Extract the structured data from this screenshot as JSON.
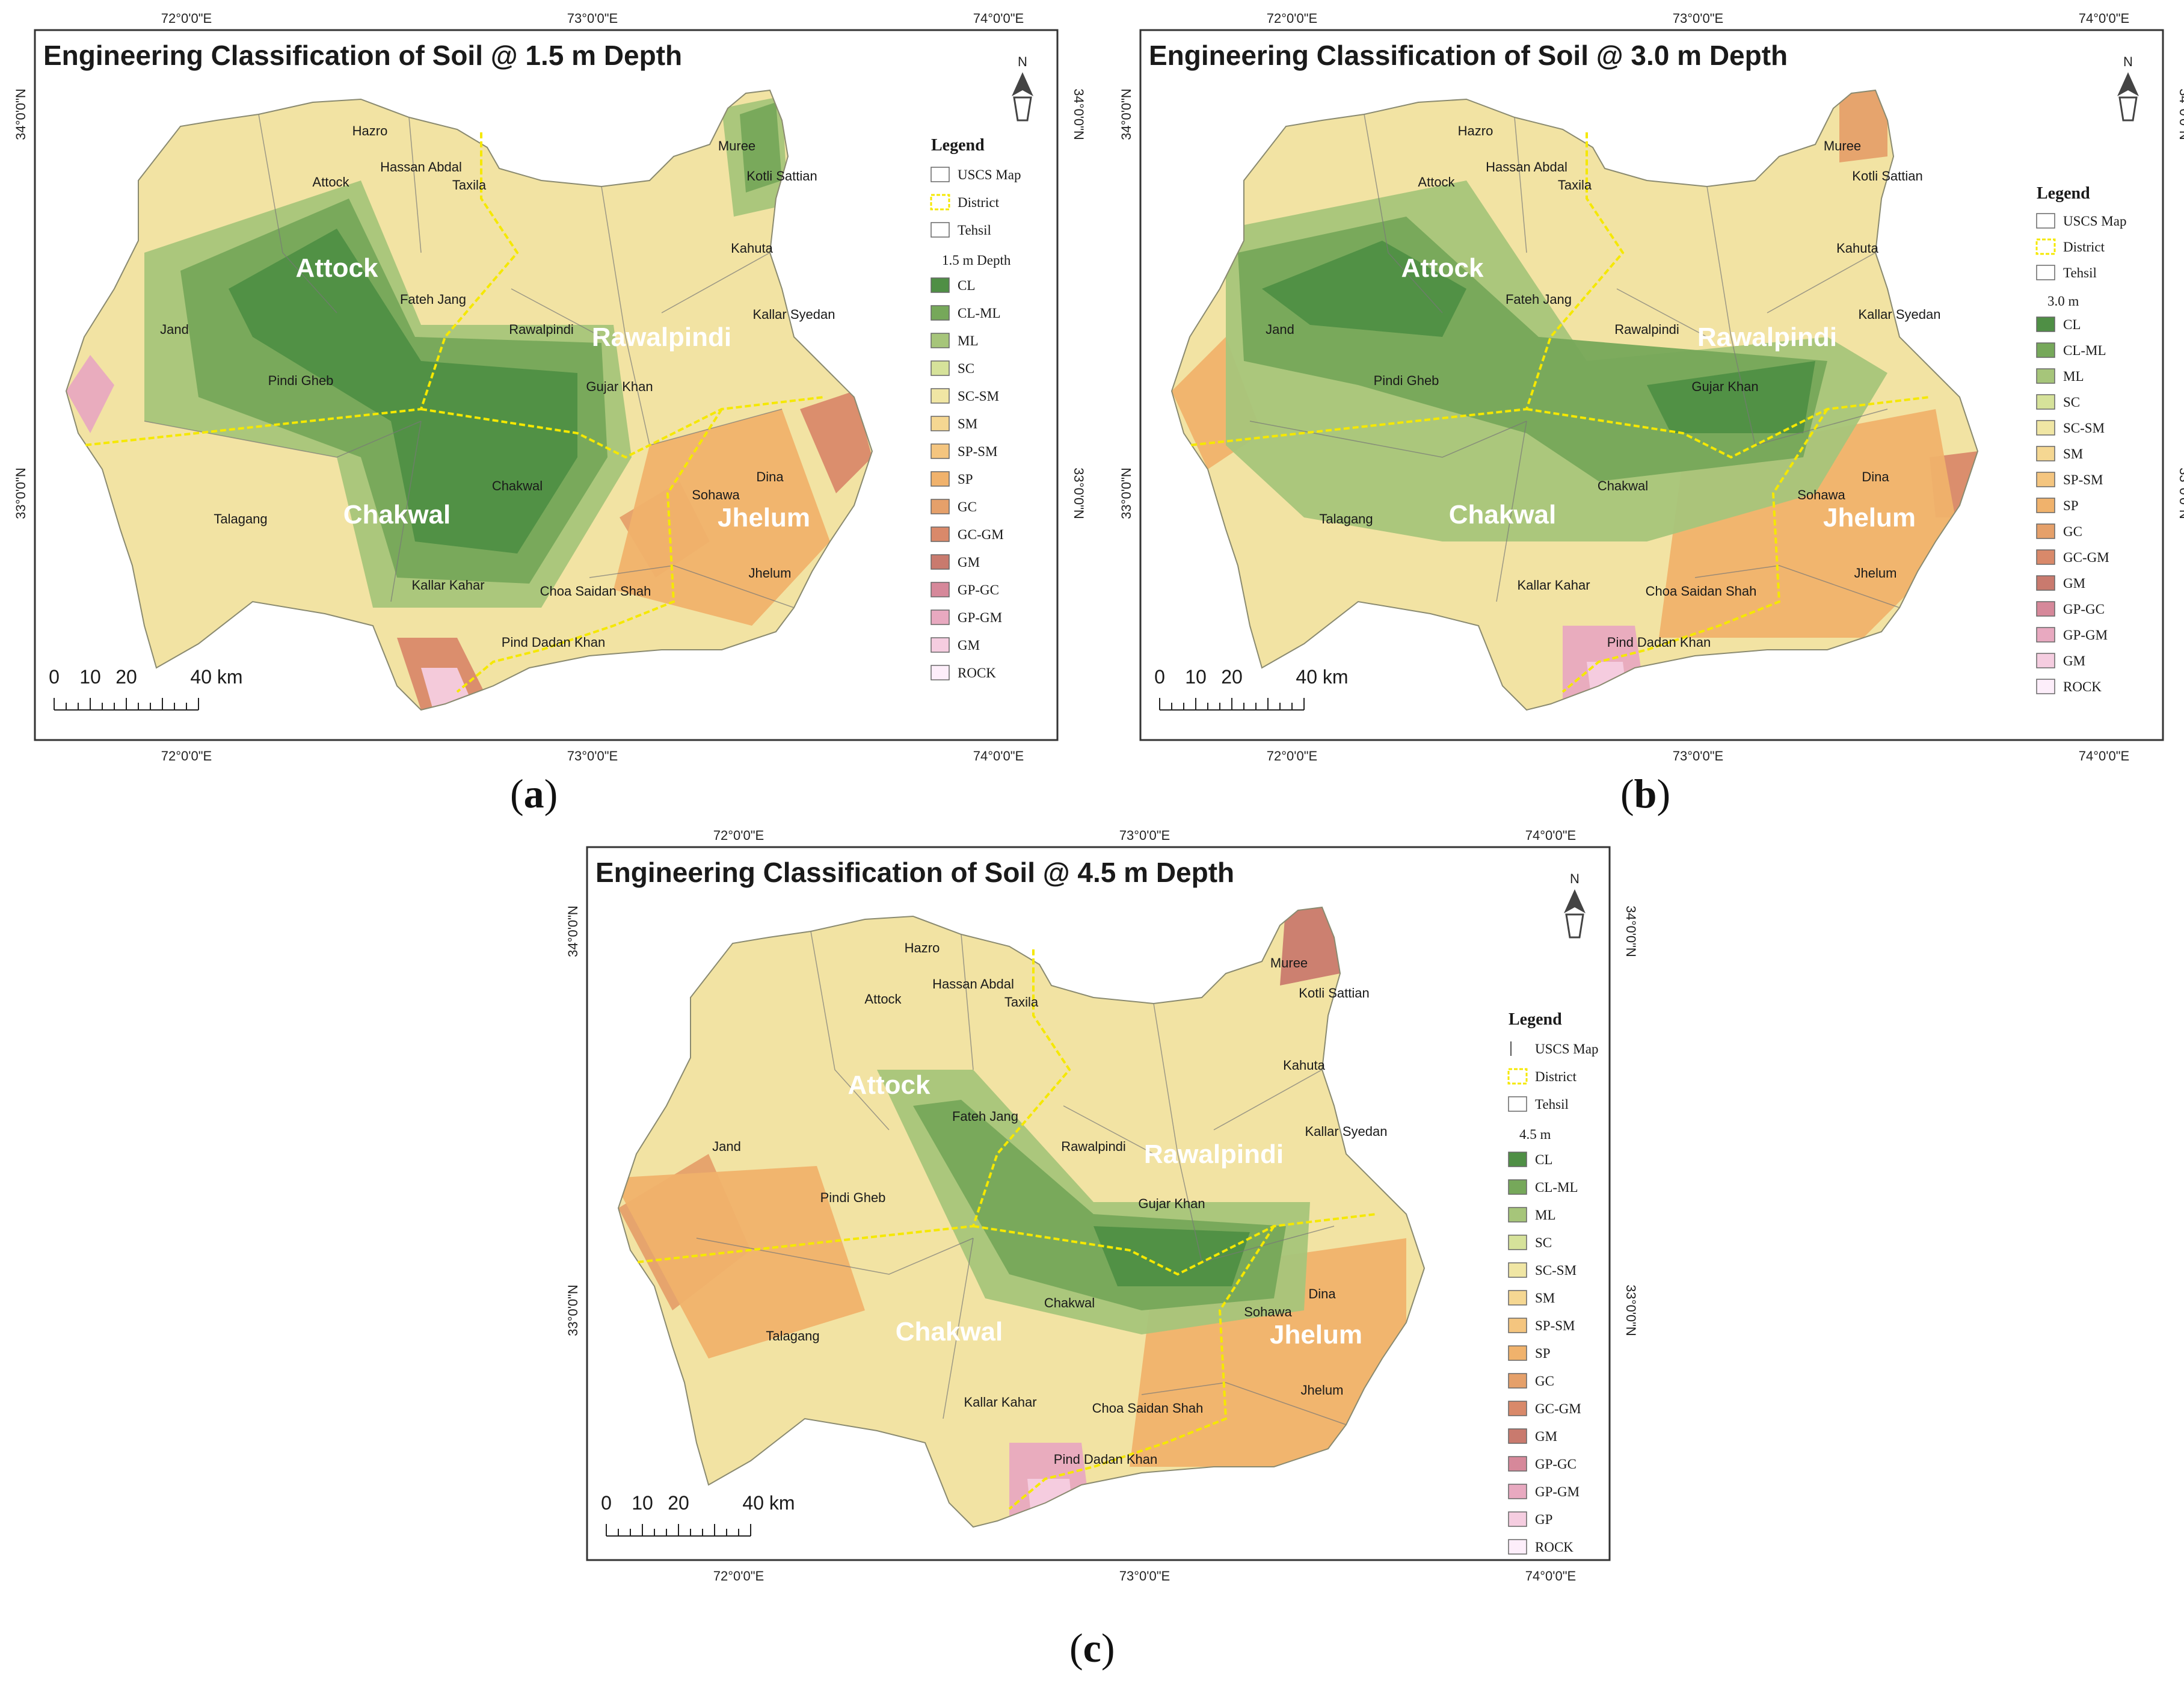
{
  "panels": [
    {
      "id": "a",
      "caption_letter": "a",
      "title": "Engineering Classification of Soil @ 1.5 m Depth",
      "lon_labels": [
        "72°0'0\"E",
        "73°0'0\"E",
        "74°0'0\"E"
      ],
      "lat_labels": [
        "34°0'0\"N",
        "33°0'0\"N"
      ],
      "north_label": "N",
      "legend_title": "Legend",
      "legend_items": [
        {
          "label": "USCS Map",
          "color": "#ffffff",
          "style": "box"
        },
        {
          "label": "District",
          "color": "#f5e800",
          "style": "dashed"
        },
        {
          "label": "Tehsil",
          "color": "#ffffff",
          "style": "box"
        },
        {
          "label": "1.5 m Depth",
          "color": "",
          "style": "header"
        },
        {
          "label": "CL",
          "color": "#4f8f45"
        },
        {
          "label": "CL-ML",
          "color": "#76a85a"
        },
        {
          "label": "ML",
          "color": "#a6c57a"
        },
        {
          "label": "SC",
          "color": "#d6e29a"
        },
        {
          "label": "SC-SM",
          "color": "#f0e6a4"
        },
        {
          "label": "SM",
          "color": "#f5d792"
        },
        {
          "label": "SP-SM",
          "color": "#f4c57f"
        },
        {
          "label": "SP",
          "color": "#f0b26c"
        },
        {
          "label": "GC",
          "color": "#e5a06a"
        },
        {
          "label": "GC-GM",
          "color": "#d9896a"
        },
        {
          "label": "GM",
          "color": "#c97a6e"
        },
        {
          "label": "GP-GC",
          "color": "#d6889a"
        },
        {
          "label": "GP-GM",
          "color": "#e8a9c0"
        },
        {
          "label": "GM",
          "color": "#f5cde0"
        },
        {
          "label": "ROCK",
          "color": "#fdeefa"
        }
      ],
      "scale": {
        "labels": [
          "0",
          "10",
          "20",
          "40 km"
        ]
      },
      "districts": [
        "Attock",
        "Rawalpindi",
        "Chakwal",
        "Jhelum"
      ],
      "places": [
        "Hazro",
        "Hassan Abdal",
        "Taxila",
        "Muree",
        "Kotli Sattian",
        "Attock",
        "Kahuta",
        "Fateh Jang",
        "Kallar Syedan",
        "Jand",
        "Rawalpindi",
        "Pindi Gheb",
        "Gujar Khan",
        "Chakwal",
        "Dina",
        "Sohawa",
        "Talagang",
        "Jhelum",
        "Kallar Kahar",
        "Choa Saidan Shah",
        "Pind Dadan Khan"
      ]
    },
    {
      "id": "b",
      "caption_letter": "b",
      "title": "Engineering Classification of Soil @ 3.0 m Depth",
      "lon_labels": [
        "72°0'0\"E",
        "73°0'0\"E",
        "74°0'0\"E"
      ],
      "lat_labels": [
        "34°0'0\"N",
        "33°0'0\"N"
      ],
      "north_label": "N",
      "legend_title": "Legend",
      "legend_items": [
        {
          "label": "USCS Map",
          "color": "#ffffff",
          "style": "box"
        },
        {
          "label": "District",
          "color": "#f5e800",
          "style": "dashed"
        },
        {
          "label": "Tehsil",
          "color": "#ffffff",
          "style": "box"
        },
        {
          "label": "3.0 m",
          "color": "",
          "style": "header"
        },
        {
          "label": "CL",
          "color": "#4f8f45"
        },
        {
          "label": "CL-ML",
          "color": "#76a85a"
        },
        {
          "label": "ML",
          "color": "#a6c57a"
        },
        {
          "label": "SC",
          "color": "#d6e29a"
        },
        {
          "label": "SC-SM",
          "color": "#f0e6a4"
        },
        {
          "label": "SM",
          "color": "#f5d792"
        },
        {
          "label": "SP-SM",
          "color": "#f4c57f"
        },
        {
          "label": "SP",
          "color": "#f0b26c"
        },
        {
          "label": "GC",
          "color": "#e5a06a"
        },
        {
          "label": "GC-GM",
          "color": "#d9896a"
        },
        {
          "label": "GM",
          "color": "#c97a6e"
        },
        {
          "label": "GP-GC",
          "color": "#d6889a"
        },
        {
          "label": "GP-GM",
          "color": "#e8a9c0"
        },
        {
          "label": "GM",
          "color": "#f5cde0"
        },
        {
          "label": "ROCK",
          "color": "#fdeefa"
        }
      ],
      "scale": {
        "labels": [
          "0",
          "10",
          "20",
          "40 km"
        ]
      },
      "districts": [
        "Attock",
        "Rawalpindi",
        "Chakwal",
        "Jhelum"
      ],
      "places": [
        "Hazro",
        "Hassan Abdal",
        "Taxila",
        "Muree",
        "Kotli Sattian",
        "Attock",
        "Kahuta",
        "Fateh Jang",
        "Kallar Syedan",
        "Jand",
        "Rawalpindi",
        "Pindi Gheb",
        "Gujar Khan",
        "Chakwal",
        "Dina",
        "Sohawa",
        "Talagang",
        "Jhelum",
        "Kallar Kahar",
        "Choa Saidan Shah",
        "Pind Dadan Khan"
      ]
    },
    {
      "id": "c",
      "caption_letter": "c",
      "title": "Engineering Classification of Soil @ 4.5 m Depth",
      "lon_labels": [
        "72°0'0\"E",
        "73°0'0\"E",
        "74°0'0\"E"
      ],
      "lat_labels": [
        "34°0'0\"N",
        "33°0'0\"N"
      ],
      "north_label": "N",
      "legend_title": "Legend",
      "legend_items": [
        {
          "label": "USCS Map",
          "color": "#ffffff",
          "style": "line"
        },
        {
          "label": "District",
          "color": "#f5e800",
          "style": "dashed"
        },
        {
          "label": "Tehsil",
          "color": "#ffffff",
          "style": "box"
        },
        {
          "label": "4.5 m",
          "color": "",
          "style": "header"
        },
        {
          "label": "CL",
          "color": "#4f8f45"
        },
        {
          "label": "CL-ML",
          "color": "#76a85a"
        },
        {
          "label": "ML",
          "color": "#a6c57a"
        },
        {
          "label": "SC",
          "color": "#d6e29a"
        },
        {
          "label": "SC-SM",
          "color": "#f0e6a4"
        },
        {
          "label": "SM",
          "color": "#f5d792"
        },
        {
          "label": "SP-SM",
          "color": "#f4c57f"
        },
        {
          "label": "SP",
          "color": "#f0b26c"
        },
        {
          "label": "GC",
          "color": "#e5a06a"
        },
        {
          "label": "GC-GM",
          "color": "#d9896a"
        },
        {
          "label": "GM",
          "color": "#c97a6e"
        },
        {
          "label": "GP-GC",
          "color": "#d6889a"
        },
        {
          "label": "GP-GM",
          "color": "#e8a9c0"
        },
        {
          "label": "GP",
          "color": "#f5cde0"
        },
        {
          "label": "ROCK",
          "color": "#fdeefa"
        }
      ],
      "scale": {
        "labels": [
          "0",
          "10",
          "20",
          "40 km"
        ]
      },
      "districts": [
        "Attock",
        "Rawalpindi",
        "Chakwal",
        "Jhelum"
      ],
      "places": [
        "Hazro",
        "Hassan Abdal",
        "Taxila",
        "Muree",
        "Kotli Sattian",
        "Attock",
        "Kahuta",
        "Fateh Jang",
        "Kallar Syedan",
        "Jand",
        "Rawalpindi",
        "Pindi Gheb",
        "Gujar Khan",
        "Chakwal",
        "Dina",
        "Sohawa",
        "Talagang",
        "Jhelum",
        "Kallar Kahar",
        "Choa Saidan Shah",
        "Pind Dadan Khan"
      ]
    }
  ]
}
